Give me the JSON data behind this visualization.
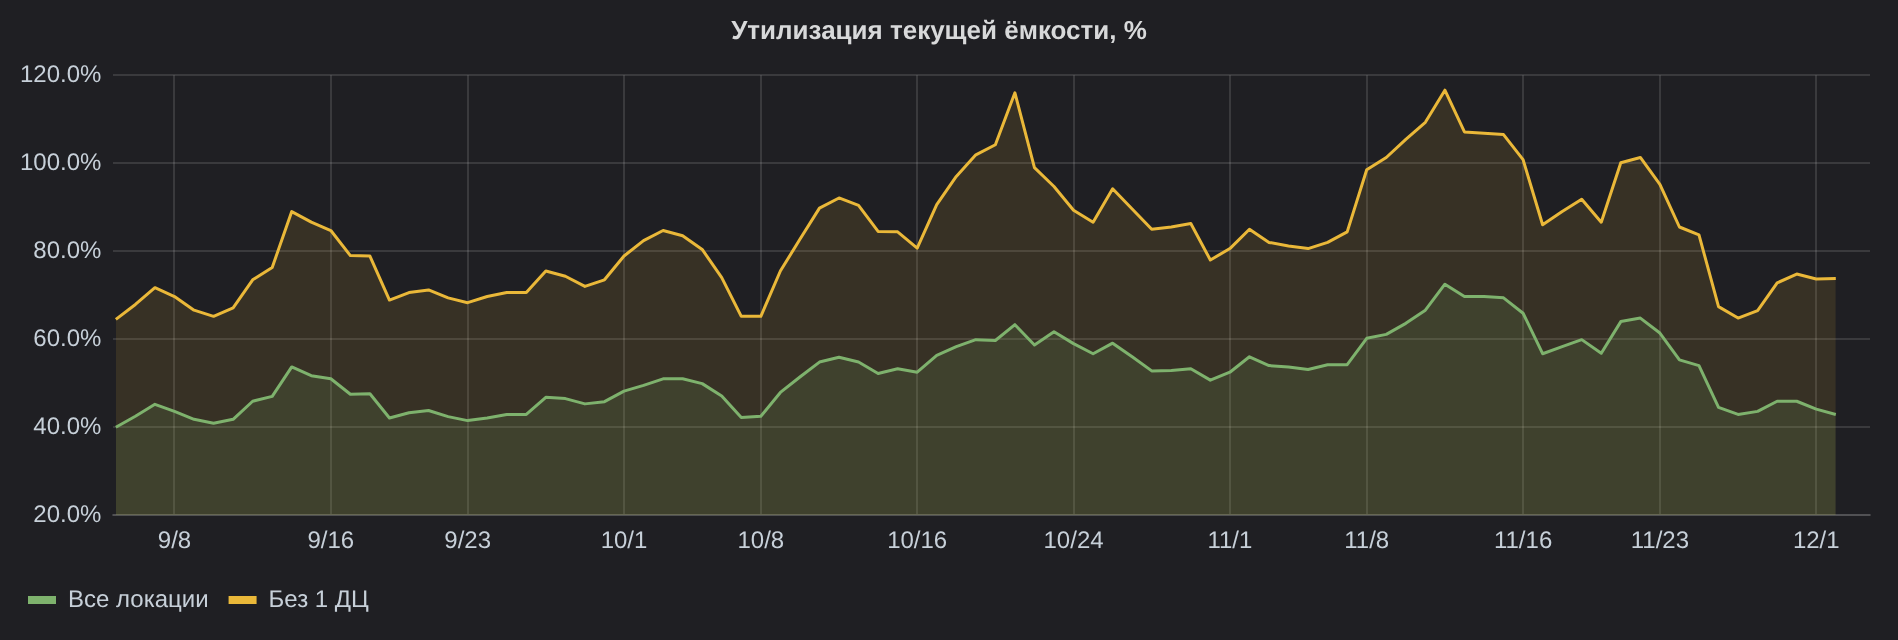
{
  "chart_data": {
    "type": "area",
    "title": "Утилизация текущей ёмкости, %",
    "x": [
      "--09-05",
      "--09-06",
      "--09-07",
      "--09-08",
      "--09-09",
      "--09-10",
      "--09-11",
      "--09-12",
      "--09-13",
      "--09-14",
      "--09-15",
      "--09-16",
      "--09-17",
      "--09-18",
      "--09-19",
      "--09-20",
      "--09-21",
      "--09-22",
      "--09-23",
      "--09-24",
      "--09-25",
      "--09-26",
      "--09-27",
      "--09-28",
      "--09-29",
      "--09-30",
      "--10-01",
      "--10-02",
      "--10-03",
      "--10-04",
      "--10-05",
      "--10-06",
      "--10-07",
      "--10-08",
      "--10-09",
      "--10-10",
      "--10-11",
      "--10-12",
      "--10-13",
      "--10-14",
      "--10-15",
      "--10-16",
      "--10-17",
      "--10-18",
      "--10-19",
      "--10-20",
      "--10-21",
      "--10-22",
      "--10-23",
      "--10-24",
      "--10-25",
      "--10-26",
      "--10-27",
      "--10-28",
      "--10-29",
      "--10-30",
      "--10-31",
      "--11-01",
      "--11-02",
      "--11-03",
      "--11-04",
      "--11-05",
      "--11-06",
      "--11-07",
      "--11-08",
      "--11-09",
      "--11-10",
      "--11-11",
      "--11-12",
      "--11-13",
      "--11-14",
      "--11-15",
      "--11-16",
      "--11-17",
      "--11-18",
      "--11-19",
      "--11-20",
      "--11-21",
      "--11-22",
      "--11-23",
      "--11-24",
      "--11-25",
      "--11-26",
      "--11-27",
      "--11-28",
      "--11-29",
      "--11-30",
      "--12-01",
      "--12-02"
    ],
    "series": [
      {
        "name": "Все локации",
        "color": "#7eb26d",
        "values": [
          40.0,
          42.5,
          45.2,
          43.6,
          41.8,
          40.9,
          41.8,
          45.9,
          47.0,
          53.7,
          51.7,
          51.0,
          47.5,
          47.6,
          42.1,
          43.3,
          43.8,
          42.4,
          41.5,
          42.1,
          42.9,
          42.9,
          46.8,
          46.5,
          45.3,
          45.8,
          48.2,
          49.5,
          51.0,
          51.0,
          49.9,
          47.1,
          42.2,
          42.5,
          47.9,
          51.4,
          54.8,
          55.9,
          54.8,
          52.2,
          53.3,
          52.5,
          56.3,
          58.3,
          59.9,
          59.7,
          63.3,
          58.7,
          61.7,
          59.0,
          56.7,
          59.1,
          56.0,
          52.8,
          52.9,
          53.3,
          50.7,
          52.5,
          56.0,
          54.0,
          53.7,
          53.1,
          54.2,
          54.2,
          60.2,
          61.1,
          63.6,
          66.6,
          72.5,
          69.7,
          69.7,
          69.4,
          65.9,
          56.7,
          58.3,
          59.9,
          56.8,
          64.0,
          64.8,
          61.4,
          55.3,
          54.0,
          44.5,
          42.9,
          43.6,
          45.9,
          45.9,
          44.1,
          42.9
        ]
      },
      {
        "name": "Без 1 ДЦ",
        "color": "#eab839",
        "values": [
          64.5,
          67.9,
          71.7,
          69.7,
          66.6,
          65.2,
          67.1,
          73.5,
          76.3,
          89.0,
          86.6,
          84.7,
          79.0,
          78.9,
          68.9,
          70.6,
          71.2,
          69.4,
          68.3,
          69.7,
          70.6,
          70.6,
          75.5,
          74.3,
          72.0,
          73.5,
          78.9,
          82.4,
          84.7,
          83.5,
          80.4,
          74.0,
          65.2,
          65.2,
          75.5,
          82.7,
          89.8,
          92.1,
          90.4,
          84.5,
          84.4,
          80.7,
          90.6,
          97.0,
          101.9,
          104.2,
          116.0,
          99.0,
          94.7,
          89.3,
          86.6,
          94.2,
          89.6,
          85.0,
          85.5,
          86.3,
          78.0,
          80.6,
          85.0,
          82.0,
          81.2,
          80.6,
          82.0,
          84.4,
          98.5,
          101.3,
          105.4,
          109.3,
          116.6,
          107.1,
          106.8,
          106.5,
          100.8,
          86.0,
          89.0,
          91.8,
          86.6,
          100.1,
          101.3,
          95.2,
          85.5,
          83.7,
          67.4,
          64.8,
          66.5,
          72.8,
          74.8,
          73.7,
          73.8
        ]
      }
    ],
    "xlim": [
      "--09-04T21:00",
      "--12-03T18:00"
    ],
    "xticks": [
      {
        "value": "--09-08",
        "label": "9/8"
      },
      {
        "value": "--09-16",
        "label": "9/16"
      },
      {
        "value": "--09-23",
        "label": "9/23"
      },
      {
        "value": "--10-01",
        "label": "10/1"
      },
      {
        "value": "--10-08",
        "label": "10/8"
      },
      {
        "value": "--10-16",
        "label": "10/16"
      },
      {
        "value": "--10-24",
        "label": "10/24"
      },
      {
        "value": "--11-01",
        "label": "11/1"
      },
      {
        "value": "--11-08",
        "label": "11/8"
      },
      {
        "value": "--11-16",
        "label": "11/16"
      },
      {
        "value": "--11-23",
        "label": "11/23"
      },
      {
        "value": "--12-01",
        "label": "12/1"
      }
    ],
    "ylim": [
      20,
      120
    ],
    "yticks": [
      {
        "value": 20,
        "label": "20.0%"
      },
      {
        "value": 40,
        "label": "40.0%"
      },
      {
        "value": 60,
        "label": "60.0%"
      },
      {
        "value": 80,
        "label": "80.0%"
      },
      {
        "value": 100,
        "label": "100.0%"
      },
      {
        "value": 120,
        "label": "120.0%"
      }
    ],
    "grid": true,
    "legend": "bottom left"
  }
}
